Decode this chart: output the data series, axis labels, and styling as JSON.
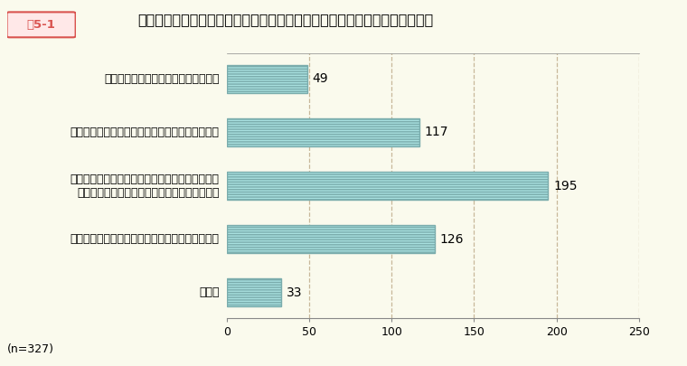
{
  "title": "「上司など職場の他の職員に相談する」を選択しなかった理由（複数回答）",
  "fig_label": "囵5-1",
  "categories": [
    "職場内に相談しやすい上司等がいない",
    "相談等しても解決にはつながらないと感じている",
    "同僚が違反行為をしていなかった場合に、本人や\n　職場の他の職員に迀惑がかかるおそれがある",
    "自分自身が不利益な取扱いを受けるおそれがある",
    "その他"
  ],
  "values": [
    49,
    117,
    195,
    126,
    33
  ],
  "bar_color_face": "#A8E0DF",
  "bar_color_edge": "#7AACAC",
  "background_color": "#FAFAED",
  "plot_bg_color": "#FAFAED",
  "n_label": "(n=327)",
  "xlim": [
    0,
    250
  ],
  "xticks": [
    0,
    50,
    100,
    150,
    200,
    250
  ],
  "xlabel_suffix": "250(人)",
  "grid_color": "#C8B89A",
  "grid_linestyle": "--",
  "value_fontsize": 10,
  "label_fontsize": 9,
  "title_fontsize": 11.5,
  "fig_label_color": "#D9534F",
  "fig_label_bg": "#FFE8E8",
  "fig_label_border": "#D9534F",
  "bar_height": 0.52
}
